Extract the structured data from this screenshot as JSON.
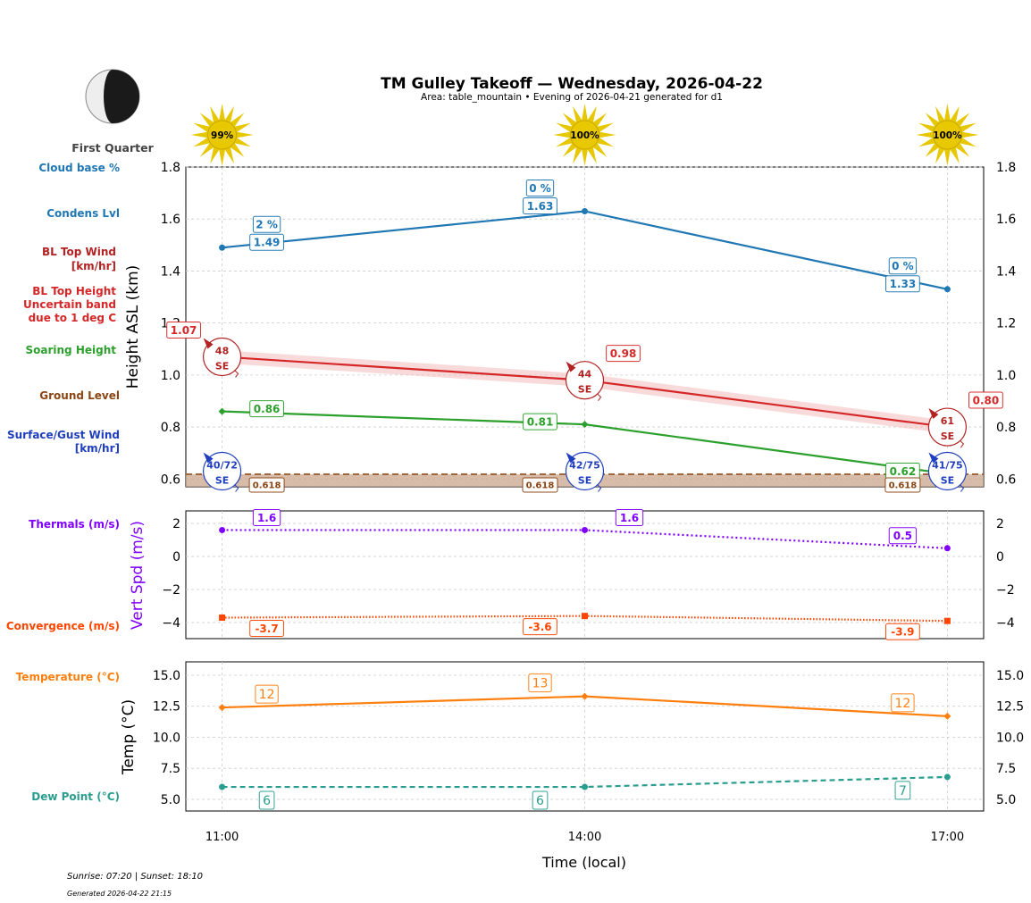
{
  "header": {
    "title": "TM Gulley Takeoff — Wednesday, 2026-04-22",
    "subtitle": "Area: table_mountain • Evening of 2026-04-21 generated for d1",
    "moon_phase": "First Quarter"
  },
  "footer": {
    "sun_times": "Sunrise: 07:20 | Sunset: 18:10",
    "generated": "Generated 2026-04-22 21:15"
  },
  "side_labels": {
    "cloud_base": "Cloud base %",
    "condens": "Condens Lvl",
    "bl_wind_1": "BL Top Wind",
    "bl_wind_2": "[km/hr]",
    "bl_height_1": "BL Top Height",
    "bl_height_2": "Uncertain band",
    "bl_height_3": "due to 1 deg C",
    "soaring": "Soaring Height",
    "ground": "Ground Level",
    "surface_1": "Surface/Gust Wind",
    "surface_2": "[km/hr]",
    "thermals": "Thermals (m/s)",
    "convergence": "Convergence (m/s)",
    "temperature": "Temperature (°C)",
    "dewpoint": "Dew Point (°C)"
  },
  "colors": {
    "cloud": "#1f77b4",
    "bl": "#d62728",
    "bl_wind": "#b22222",
    "soaring": "#2ca02c",
    "ground": "#8b4513",
    "surface": "#1f3fbf",
    "thermals": "#8000ff",
    "convergence": "#ff4500",
    "temperature": "#ff7f0e",
    "dewpoint": "#2a9d8f",
    "sun": "#e6c700"
  },
  "chart_data": [
    {
      "type": "line",
      "ylabel": "Height ASL (km)",
      "xlabel": "Time (local)",
      "x_ticks": [
        "11:00",
        "14:00",
        "17:00"
      ],
      "x": [
        11,
        14,
        17
      ],
      "xlim": [
        10.7,
        17.3
      ],
      "ylim": [
        0.57,
        1.8
      ],
      "y_ticks": [
        0.6,
        0.8,
        1.0,
        1.2,
        1.4,
        1.6,
        1.8
      ],
      "grid": true,
      "sun_percent": [
        "99%",
        "100%",
        "100%"
      ],
      "series": [
        {
          "key": "cloud",
          "values": [
            1.49,
            1.63,
            1.33
          ],
          "labels": [
            "1.49",
            "1.63",
            "1.33"
          ],
          "cloud_pct": [
            "2 %",
            "0 %",
            "0 %"
          ]
        },
        {
          "key": "bl",
          "values": [
            1.07,
            0.98,
            0.8
          ],
          "band": 0.025,
          "labels": [
            "1.07",
            "0.98",
            "0.80"
          ],
          "wind_speed": [
            "48",
            "44",
            "61"
          ],
          "wind_dir": [
            "SE",
            "SE",
            "SE"
          ]
        },
        {
          "key": "soaring",
          "values": [
            0.86,
            0.81,
            0.62
          ],
          "labels": [
            "0.86",
            "0.81",
            "0.62"
          ]
        },
        {
          "key": "ground",
          "values": [
            0.618,
            0.618,
            0.618
          ],
          "labels": [
            "0.618",
            "0.618",
            "0.618"
          ]
        },
        {
          "key": "surface",
          "wind": [
            "40/72",
            "42/75",
            "41/75"
          ],
          "wind_dir": [
            "SE",
            "SE",
            "SE"
          ],
          "at": 0.63
        }
      ]
    },
    {
      "type": "line",
      "ylabel": "Vert Spd (m/s)",
      "x": [
        11,
        14,
        17
      ],
      "ylim": [
        -4.97,
        2.76
      ],
      "y_ticks": [
        -4,
        -2,
        0,
        2
      ],
      "y_tick_labels": [
        "−4",
        "−2",
        "0",
        "2"
      ],
      "grid": true,
      "series": [
        {
          "key": "thermals",
          "values": [
            1.6,
            1.6,
            0.5
          ],
          "labels": [
            "1.6",
            "1.6",
            "0.5"
          ]
        },
        {
          "key": "convergence",
          "values": [
            -3.7,
            -3.6,
            -3.9
          ],
          "labels": [
            "-3.7",
            "-3.6",
            "-3.9"
          ]
        }
      ]
    },
    {
      "type": "line",
      "ylabel": "Temp (°C)",
      "x": [
        11,
        14,
        17
      ],
      "ylim": [
        4.06,
        16.08
      ],
      "y_ticks": [
        5.0,
        7.5,
        10.0,
        12.5,
        15.0
      ],
      "y_tick_labels": [
        "5.0",
        "7.5",
        "10.0",
        "12.5",
        "15.0"
      ],
      "grid": true,
      "series": [
        {
          "key": "temperature",
          "values": [
            12.4,
            13.3,
            11.7
          ],
          "labels": [
            "12",
            "13",
            "12"
          ]
        },
        {
          "key": "dewpoint",
          "values": [
            6.0,
            6.0,
            6.8
          ],
          "labels": [
            "6",
            "6",
            "7"
          ]
        }
      ]
    }
  ]
}
